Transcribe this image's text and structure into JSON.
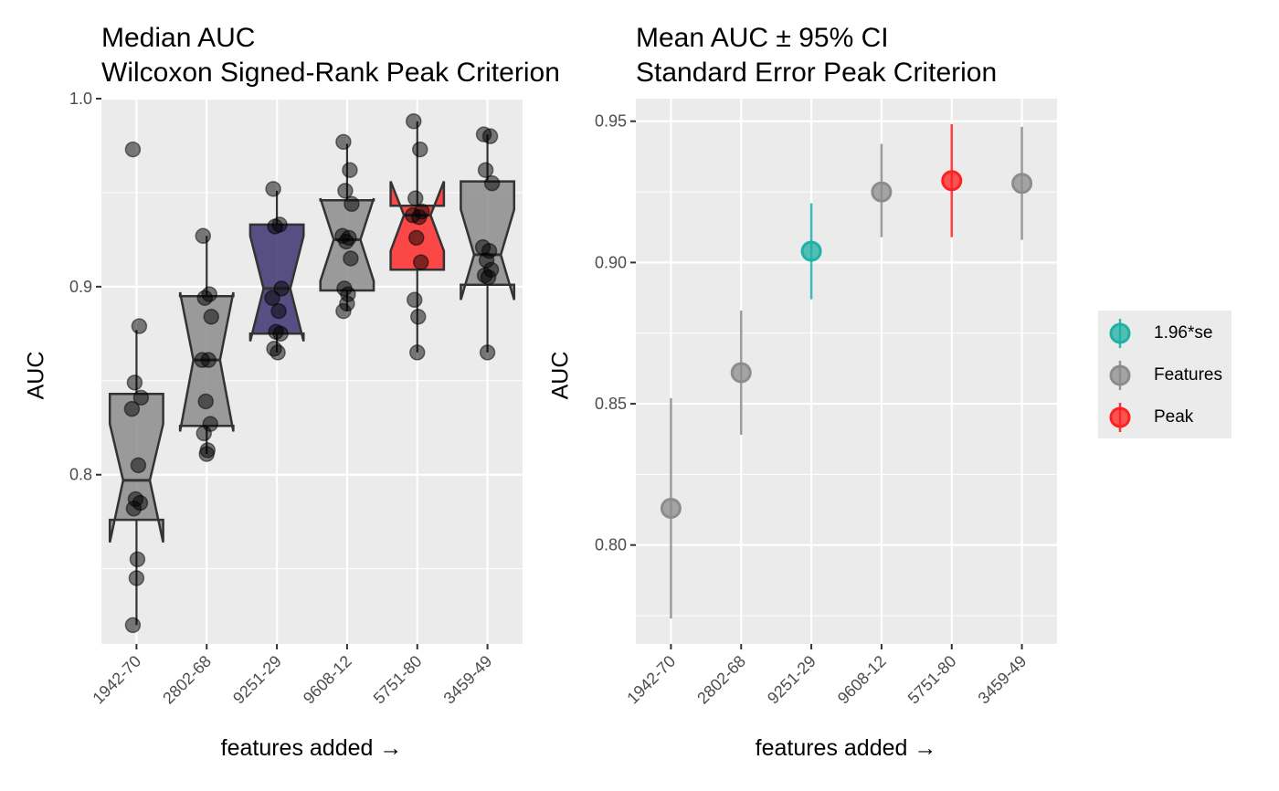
{
  "chart_data": [
    {
      "type": "boxplot",
      "title": "Median AUC",
      "subtitle": "Wilcoxon Signed-Rank Peak Criterion",
      "xlabel": "features added →",
      "ylabel": "AUC",
      "ylim": [
        0.71,
        1.0
      ],
      "yticks": [
        0.8,
        0.9,
        1.0
      ],
      "ytick_labels": [
        "0.8",
        "0.9",
        "1.0"
      ],
      "grid": true,
      "notched": true,
      "categories": [
        "1942-70",
        "2802-68",
        "9251-29",
        "9608-12",
        "5751-80",
        "3459-49"
      ],
      "boxes": [
        {
          "q1": 0.776,
          "median": 0.797,
          "q3": 0.843,
          "whisker_low": 0.72,
          "whisker_high": 0.877,
          "notch_low": 0.764,
          "notch_high": 0.827,
          "fill": "#8c8c8c"
        },
        {
          "q1": 0.826,
          "median": 0.861,
          "q3": 0.895,
          "whisker_low": 0.811,
          "whisker_high": 0.927,
          "notch_low": 0.823,
          "notch_high": 0.897,
          "fill": "#8c8c8c"
        },
        {
          "q1": 0.875,
          "median": 0.899,
          "q3": 0.933,
          "whisker_low": 0.865,
          "whisker_high": 0.951,
          "notch_low": 0.871,
          "notch_high": 0.927,
          "fill": "#3d3371"
        },
        {
          "q1": 0.898,
          "median": 0.925,
          "q3": 0.946,
          "whisker_low": 0.887,
          "whisker_high": 0.976,
          "notch_low": 0.903,
          "notch_high": 0.947,
          "fill": "#8c8c8c"
        },
        {
          "q1": 0.909,
          "median": 0.938,
          "q3": 0.943,
          "whisker_low": 0.865,
          "whisker_high": 0.988,
          "notch_low": 0.919,
          "notch_high": 0.956,
          "fill": "#ff2a2a"
        },
        {
          "q1": 0.901,
          "median": 0.917,
          "q3": 0.956,
          "whisker_low": 0.865,
          "whisker_high": 0.981,
          "notch_low": 0.893,
          "notch_high": 0.941,
          "fill": "#8c8c8c"
        }
      ],
      "points": [
        [
          0.973,
          0.879,
          0.849,
          0.841,
          0.835,
          0.805,
          0.787,
          0.785,
          0.782,
          0.755,
          0.745,
          0.72
        ],
        [
          0.927,
          0.896,
          0.894,
          0.884,
          0.861,
          0.861,
          0.839,
          0.827,
          0.822,
          0.813,
          0.811
        ],
        [
          0.952,
          0.933,
          0.932,
          0.899,
          0.894,
          0.887,
          0.876,
          0.875,
          0.867,
          0.865
        ],
        [
          0.977,
          0.962,
          0.951,
          0.944,
          0.927,
          0.926,
          0.924,
          0.915,
          0.899,
          0.896,
          0.891,
          0.887
        ],
        [
          0.988,
          0.973,
          0.947,
          0.94,
          0.938,
          0.937,
          0.926,
          0.913,
          0.893,
          0.884,
          0.865
        ],
        [
          0.981,
          0.98,
          0.962,
          0.955,
          0.921,
          0.919,
          0.914,
          0.909,
          0.906,
          0.905,
          0.865
        ]
      ]
    },
    {
      "type": "errorbar",
      "title": "Mean AUC ± 95% CI",
      "subtitle": "Standard Error Peak Criterion",
      "xlabel": "features added →",
      "ylabel": "AUC",
      "ylim": [
        0.765,
        0.958
      ],
      "yticks": [
        0.8,
        0.85,
        0.9,
        0.95
      ],
      "ytick_labels": [
        "0.80",
        "0.85",
        "0.90",
        "0.95"
      ],
      "grid": true,
      "categories": [
        "1942-70",
        "2802-68",
        "9251-29",
        "9608-12",
        "5751-80",
        "3459-49"
      ],
      "mean": [
        0.813,
        0.861,
        0.904,
        0.925,
        0.929,
        0.928
      ],
      "lower": [
        0.774,
        0.839,
        0.887,
        0.909,
        0.909,
        0.908
      ],
      "upper": [
        0.852,
        0.883,
        0.921,
        0.942,
        0.949,
        0.948
      ],
      "group": [
        "Features",
        "Features",
        "1.96*se",
        "Features",
        "Peak",
        "Features"
      ],
      "legend_position": "right",
      "legend": [
        {
          "label": "1.96*se",
          "color": "#1fb0a6"
        },
        {
          "label": "Features",
          "color": "#8c8c8c"
        },
        {
          "label": "Peak",
          "color": "#ff2020"
        }
      ]
    }
  ]
}
